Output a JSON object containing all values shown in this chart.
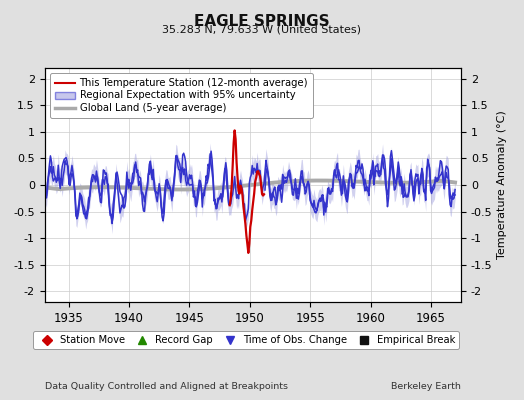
{
  "title": "EAGLE SPRINGS",
  "subtitle": "35.283 N, 79.633 W (United States)",
  "ylabel": "Temperature Anomaly (°C)",
  "xlabel_note": "Data Quality Controlled and Aligned at Breakpoints",
  "credit": "Berkeley Earth",
  "year_start": 1933.0,
  "year_end": 1967.0,
  "xlim": [
    1933.0,
    1967.5
  ],
  "ylim": [
    -2.2,
    2.2
  ],
  "yticks": [
    -2,
    -1.5,
    -1,
    -0.5,
    0,
    0.5,
    1,
    1.5,
    2
  ],
  "xticks": [
    1935,
    1940,
    1945,
    1950,
    1955,
    1960,
    1965
  ],
  "bg_color": "#e0e0e0",
  "plot_bg_color": "#ffffff",
  "red_highlight_start": 1948.3,
  "red_highlight_end": 1951.2,
  "station_color": "#cc0000",
  "regional_color": "#3333cc",
  "uncertainty_color": "#9999dd",
  "global_color": "#aaaaaa",
  "legend_entries": [
    {
      "label": "This Temperature Station (12-month average)",
      "color": "#cc0000",
      "lw": 1.5
    },
    {
      "label": "Regional Expectation with 95% uncertainty",
      "color": "#3333cc",
      "lw": 1.5
    },
    {
      "label": "Global Land (5-year average)",
      "color": "#aaaaaa",
      "lw": 2.5
    }
  ],
  "marker_legend": [
    {
      "label": "Station Move",
      "color": "#cc0000",
      "marker": "D"
    },
    {
      "label": "Record Gap",
      "color": "#228800",
      "marker": "^"
    },
    {
      "label": "Time of Obs. Change",
      "color": "#3333cc",
      "marker": "v"
    },
    {
      "label": "Empirical Break",
      "color": "#111111",
      "marker": "s"
    }
  ]
}
